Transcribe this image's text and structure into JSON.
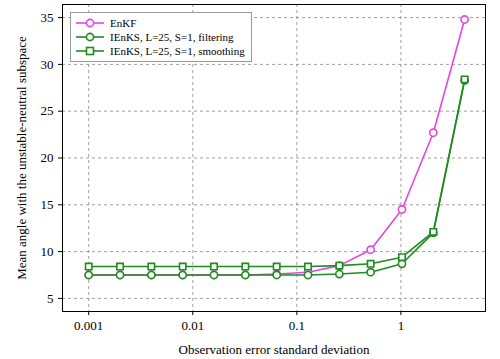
{
  "chart_data": {
    "type": "line",
    "x_label": "Observation error standard deviation",
    "y_label": "Mean angle with the unstable-neutral subspace",
    "log": "x",
    "grid": true,
    "legend": "upper left",
    "xlim": [
      0.00056,
      6.5
    ],
    "xticks": [
      0.001,
      0.01,
      0.1,
      1
    ],
    "ylim": [
      3.6,
      36.4
    ],
    "yticks": [
      5,
      10,
      15,
      20,
      25,
      30,
      35
    ],
    "x": [
      0.001,
      0.002,
      0.004,
      0.008,
      0.016,
      0.032,
      0.064,
      0.128,
      0.256,
      0.512,
      1.024,
      2.048,
      4.096
    ],
    "series": [
      {
        "name": "EnKF",
        "color": "#e545e5",
        "marker": "circle",
        "line_style": "solid",
        "values": [
          7.5,
          7.5,
          7.5,
          7.5,
          7.5,
          7.5,
          7.6,
          7.8,
          8.5,
          10.2,
          14.5,
          22.7,
          34.8
        ]
      },
      {
        "name": "IEnKS, L=25, S=1, filtering",
        "color": "#1e8c1e",
        "marker": "circle",
        "line_style": "solid",
        "values": [
          7.5,
          7.5,
          7.5,
          7.5,
          7.5,
          7.5,
          7.5,
          7.5,
          7.6,
          7.8,
          8.7,
          12.0,
          28.3
        ]
      },
      {
        "name": "IEnKS, L=25, S=1, smoothing",
        "color": "#1e8c1e",
        "marker": "square",
        "line_style": "solid",
        "values": [
          8.4,
          8.4,
          8.4,
          8.4,
          8.4,
          8.4,
          8.4,
          8.4,
          8.5,
          8.7,
          9.4,
          12.1,
          28.4
        ]
      }
    ]
  }
}
